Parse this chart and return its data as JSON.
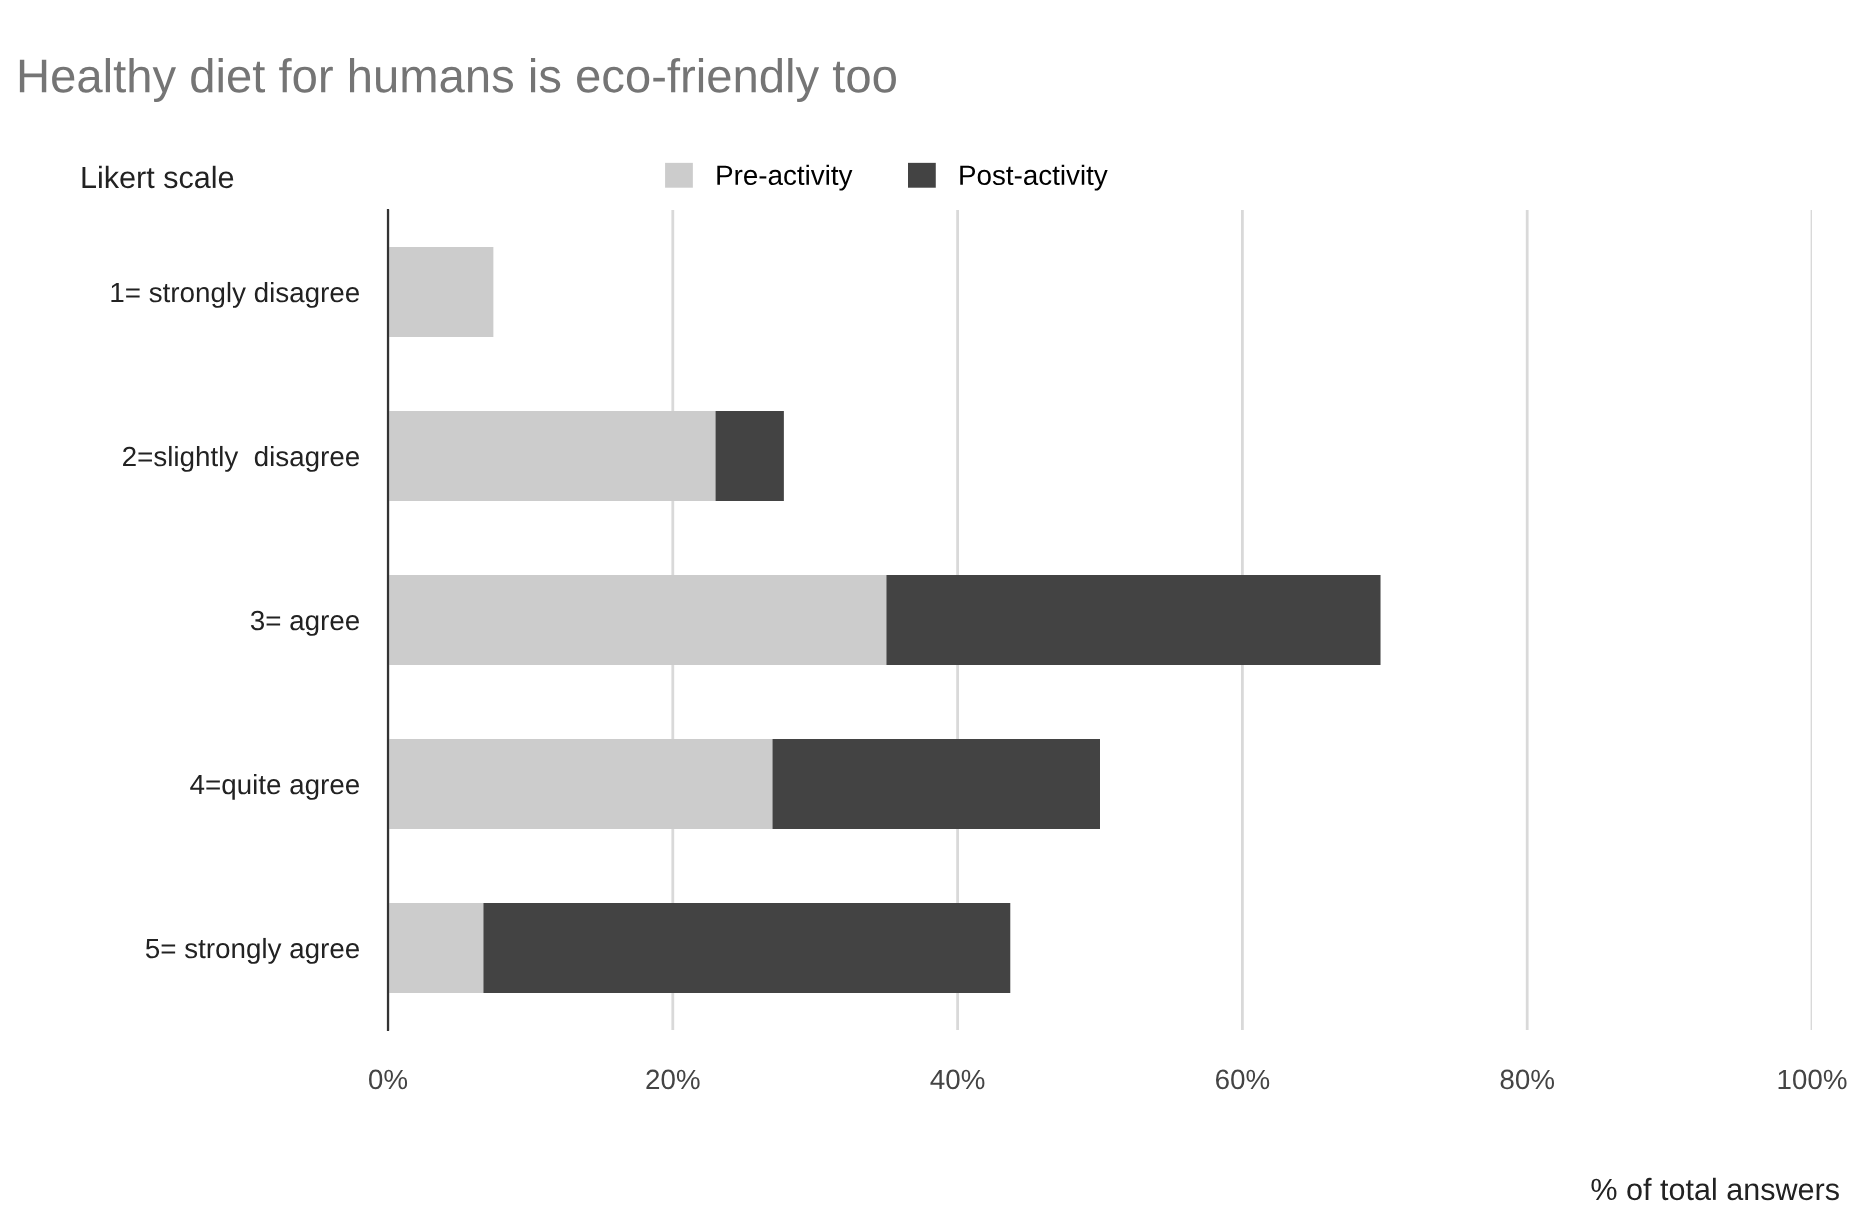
{
  "chart_data": {
    "type": "bar",
    "orientation": "horizontal",
    "stacked": true,
    "title": "Healthy diet for humans is eco-friendly too",
    "ylabel": "Likert scale",
    "xlabel": "% of total answers",
    "categories": [
      "1= strongly disagree",
      "2=slightly  disagree",
      "3= agree",
      "4=quite agree",
      "5= strongly agree"
    ],
    "series": [
      {
        "name": "Pre-activity",
        "color": "#cccccc",
        "values": [
          7.4,
          23,
          35,
          27,
          6.7
        ]
      },
      {
        "name": "Post-activity",
        "color": "#434343",
        "values": [
          0,
          4.8,
          34.7,
          23,
          37
        ]
      }
    ],
    "xlim": [
      0,
      100
    ],
    "xticks": [
      {
        "value": 0,
        "label": "0%"
      },
      {
        "value": 20,
        "label": "20%"
      },
      {
        "value": 40,
        "label": "40%"
      },
      {
        "value": 60,
        "label": "60%"
      },
      {
        "value": 80,
        "label": "80%"
      },
      {
        "value": 100,
        "label": "100%"
      }
    ],
    "grid": "x",
    "legend": "top"
  }
}
